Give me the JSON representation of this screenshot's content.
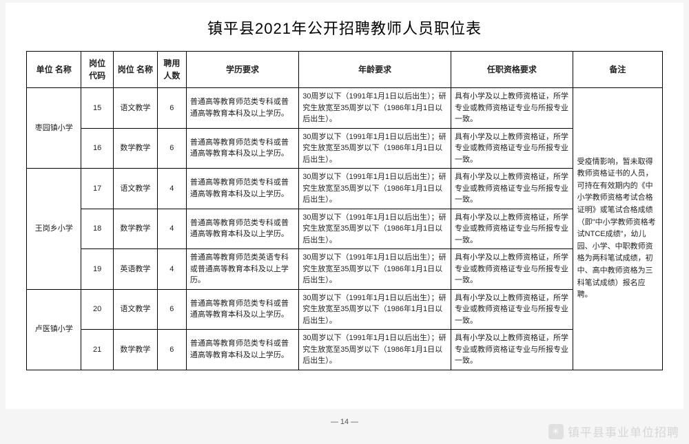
{
  "title": "镇平县2021年公开招聘教师人员职位表",
  "page_label": "— 14 —",
  "watermark": {
    "icon": "wechat-icon",
    "text": "镇平县事业单位招聘"
  },
  "colors": {
    "border": "#000000",
    "text": "#222222",
    "background": "#ffffff",
    "watermark": "#d6d6d6"
  },
  "columns": [
    {
      "key": "unit",
      "label": "单位\n名称"
    },
    {
      "key": "code",
      "label": "岗位\n代码"
    },
    {
      "key": "pname",
      "label": "岗位\n名称"
    },
    {
      "key": "num",
      "label": "聘用\n人数"
    },
    {
      "key": "edu",
      "label": "学历要求"
    },
    {
      "key": "age",
      "label": "年龄要求"
    },
    {
      "key": "qual",
      "label": "任职资格要求"
    },
    {
      "key": "note",
      "label": "备注"
    }
  ],
  "edu_text_std": "普通高等教育师范类专科或普通高等教育本科及以上学历。",
  "edu_text_eng": "普通高等教育师范类英语专科或普通高等教育本科及以上学历。",
  "age_text": "30周岁以下（1991年1月1日以后出生）；研究生放宽至35周岁以下（1986年1月1日以后出生）。",
  "qual_text": "具有小学及以上教师资格证，所学专业或教师资格证专业与所报专业一致。",
  "note_text": "受疫情影响，暂未取得教师资格证书的人员，可持在有效期内的《中小学教师资格考试合格证明》或笔试合格成绩（即\"中小学教师资格考试NTCE成绩\"，幼儿园、小学、中职教师资格为两科笔试成绩，初中、高中教师资格为三科笔试成绩）报名应聘。",
  "groups": [
    {
      "unit": "枣园镇小学",
      "rows": [
        {
          "code": "15",
          "pname": "语文教学",
          "num": "6",
          "edu": "std"
        },
        {
          "code": "16",
          "pname": "数学教学",
          "num": "6",
          "edu": "std"
        }
      ]
    },
    {
      "unit": "王岗乡小学",
      "rows": [
        {
          "code": "17",
          "pname": "语文教学",
          "num": "4",
          "edu": "std"
        },
        {
          "code": "18",
          "pname": "数学教学",
          "num": "4",
          "edu": "std"
        },
        {
          "code": "19",
          "pname": "英语教学",
          "num": "4",
          "edu": "eng"
        }
      ]
    },
    {
      "unit": "卢医镇小学",
      "rows": [
        {
          "code": "20",
          "pname": "语文教学",
          "num": "6",
          "edu": "std"
        },
        {
          "code": "21",
          "pname": "数学教学",
          "num": "6",
          "edu": "std"
        }
      ]
    }
  ]
}
